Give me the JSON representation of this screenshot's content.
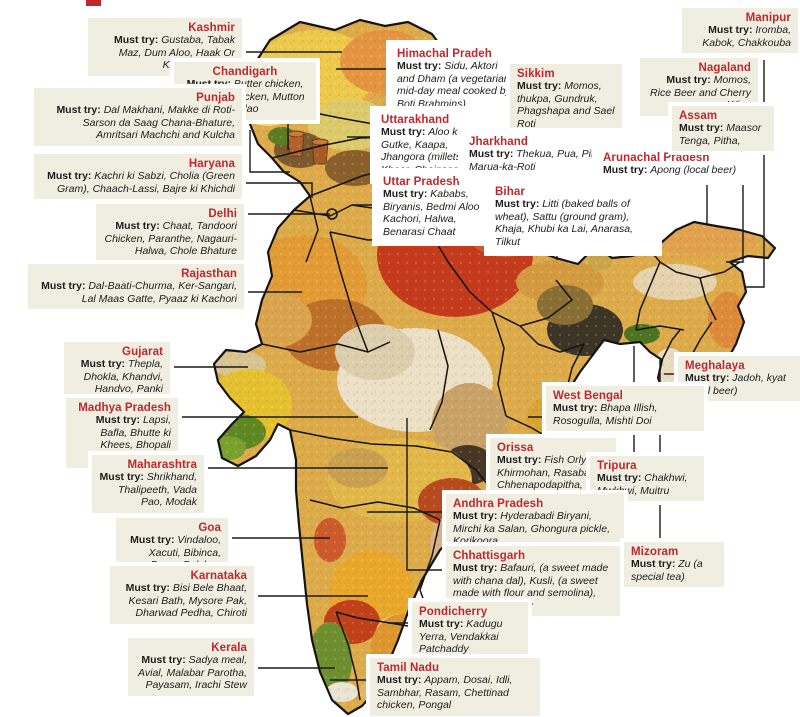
{
  "must_try_label": "Must try:",
  "colors": {
    "accent_red": "#c0272c",
    "label_box_bg": "#f0ede1",
    "text_color": "#1d1d1b",
    "map_outline": "#141414"
  },
  "states": [
    {
      "id": "kashmir",
      "name": "Kashmir",
      "items": "Gustaba, Tabak Maz, Dum Aloo, Haak Or Karam ka Saag"
    },
    {
      "id": "chandigarh",
      "name": "Chandigarh",
      "items": "Butter chicken, Tandoori Chicken, Mutton Pulao"
    },
    {
      "id": "punjab",
      "name": "Punjab",
      "items": "Dal Makhani, Makke di Roti-Sarson da Saag Chana-Bhature, Amritsari Machchi and Kulcha"
    },
    {
      "id": "haryana",
      "name": "Haryana",
      "items": "Kachri ki Sabzi, Cholia (Green Gram), Chaach-Lassi, Bajre ki Khichdi"
    },
    {
      "id": "delhi",
      "name": "Delhi",
      "items": "Chaat, Tandoori Chicken, Paranthe, Nagauri-Halwa, Chole Bhature"
    },
    {
      "id": "rajasthan",
      "name": "Rajasthan",
      "items": "Dal-Baati-Churma, Ker-Sangari, Lal Maas Gatte, Pyaaz ki Kachori"
    },
    {
      "id": "gujarat",
      "name": "Gujarat",
      "items": "Thepla, Dhokla, Khandvi, Handvo, Panki"
    },
    {
      "id": "madhya-pradesh",
      "name": "Madhya Pradesh",
      "items": "Lapsi, Bafla, Bhutte ki Khees, Bhopali Kababs,"
    },
    {
      "id": "maharashtra",
      "name": "Maharashtra",
      "items": "Shrikhand, Thalipeeth, Vada Pao,  Modak"
    },
    {
      "id": "goa",
      "name": "Goa",
      "items": "Vindaloo, Xacuti, Bibinca, Prawn Balchao"
    },
    {
      "id": "karnataka",
      "name": "Karnataka",
      "items": "Bisi Bele Bhaat, Kesari Bath, Mysore Pak, Dharwad Pedha, Chiroti"
    },
    {
      "id": "kerala",
      "name": "Kerala",
      "items": "Sadya meal, Avial, Malabar Parotha, Payasam, Irachi Stew"
    },
    {
      "id": "himachal-pradesh",
      "name": "Himachal Pradeh",
      "items": "Sidu, Aktori and Dham (a vegetarian mid-day meal cooked by Boti Brahmins)"
    },
    {
      "id": "uttarakhand",
      "name": "Uttarakhand",
      "items": "Aloo ke Gutke, Kaapa, Jhangora (millets) ki Kheer, Chainsoo"
    },
    {
      "id": "uttar-pradesh",
      "name": "Uttar Pradesh",
      "items": "Kababs, Biryanis, Bedmi Aloo Kachori, Halwa, Benarasi Chaat"
    },
    {
      "id": "sikkim",
      "name": "Sikkim",
      "items": "Momos, thukpa, Gundruk, Phagshapa and Sael Roti"
    },
    {
      "id": "jharkhand",
      "name": "Jharkhand",
      "items": "Thekua, Pua, Pittha, Marua-ka-Roti"
    },
    {
      "id": "bihar",
      "name": "Bihar",
      "items": "Litti (baked balls of wheat), Sattu (ground gram), Khaja, Khubi ka Lai, Anarasa, Tilkut"
    },
    {
      "id": "arunachal-pradesh",
      "name": "Arunachal Pradesh",
      "items": "Apong (local beer)"
    },
    {
      "id": "manipur",
      "name": "Manipur",
      "items": "Iromba, Kabok, Chakkouba"
    },
    {
      "id": "nagaland",
      "name": "Nagaland",
      "items": "Momos, Rice Beer and Cherry Wine"
    },
    {
      "id": "assam",
      "name": "Assam",
      "items": "Maasor Tenga, Pitha,"
    },
    {
      "id": "meghalaya",
      "name": "Meghalaya",
      "items": "Jadoh, kyat (local beer)"
    },
    {
      "id": "west-bengal",
      "name": "West Bengal",
      "items": "Bhapa Illish, Rosogulla, Mishti Doi"
    },
    {
      "id": "orissa",
      "name": "Orissa",
      "items": "Fish Orly, Khirmohan, Rasabali, Chhenapodapitha,"
    },
    {
      "id": "tripura",
      "name": "Tripura",
      "items": "Chakhwi, Mwkhwi, Muitru"
    },
    {
      "id": "andhra-pradesh",
      "name": "Andhra Pradesh",
      "items": "Hyderabadi Biryani, Mirchi ka Salan, Ghongura pickle, Korikoora"
    },
    {
      "id": "chhattisgarh",
      "name": "Chhattisgarh",
      "items": "Bafauri, (a sweet made with chana dal), Kusli, (a sweet made with flour and semolina), Red Ant Chutney"
    },
    {
      "id": "mizoram",
      "name": "Mizoram",
      "items": "Zu (a special tea)"
    },
    {
      "id": "pondicherry",
      "name": "Pondicherry",
      "items": "Kadugu Yerra, Vendakkai Patchaddy"
    },
    {
      "id": "tamil-nadu",
      "name": "Tamil Nadu",
      "items": "Appam, Dosai, Idli, Sambhar, Rasam, Chettinad chicken, Pongal"
    }
  ]
}
